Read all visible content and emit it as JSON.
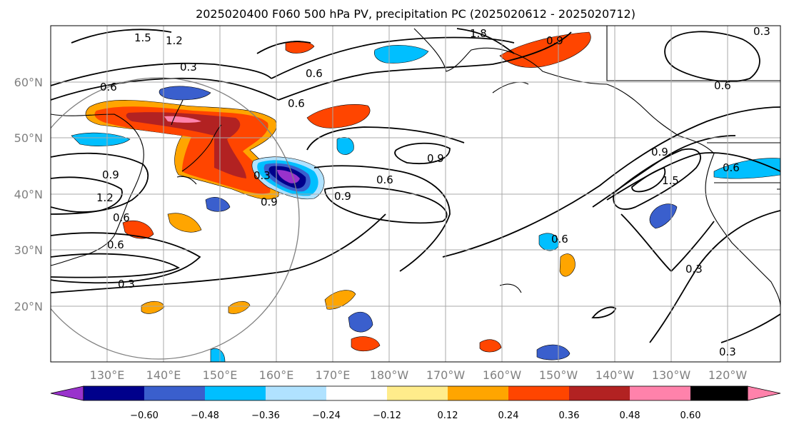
{
  "title": "2025020400 F060 500 hPa PV, precipitation PC (2025020612 - 2025020712)",
  "latitude_labels": [
    "60°N",
    "50°N",
    "40°N",
    "30°N",
    "20°N"
  ],
  "longitude_labels": [
    "130°E",
    "140°E",
    "150°E",
    "160°E",
    "170°E",
    "180°W",
    "170°W",
    "160°W",
    "150°W",
    "140°W",
    "130°W",
    "120°W"
  ],
  "colorbar": {
    "ticks": [
      "−0.60",
      "−0.48",
      "−0.36",
      "−0.24",
      "−0.12",
      "0.12",
      "0.24",
      "0.36",
      "0.48",
      "0.60"
    ],
    "colors": [
      "#9932cc",
      "#00008b",
      "#3a5fcd",
      "#00bfff",
      "#b0e2ff",
      "#ffffff",
      "#ffec8b",
      "#ffa500",
      "#ff4500",
      "#b22222",
      "#ff82ab"
    ]
  },
  "contour_labels": [
    "1.5",
    "1.2",
    "0.3",
    "0.6",
    "0.6",
    "0.9",
    "1.2",
    "0.6",
    "0.6",
    "0.3",
    "0.3",
    "0.9",
    "0.6",
    "0.9",
    "0.6",
    "0.9",
    "1.8",
    "0.9",
    "0.6",
    "0.6",
    "0.9",
    "1.5",
    "0.6",
    "0.3",
    "0.3",
    "0.3"
  ],
  "colors": {
    "coast": "#000000",
    "grid": "#a9a9a9",
    "contour": "#000000",
    "circle": "#808080"
  }
}
